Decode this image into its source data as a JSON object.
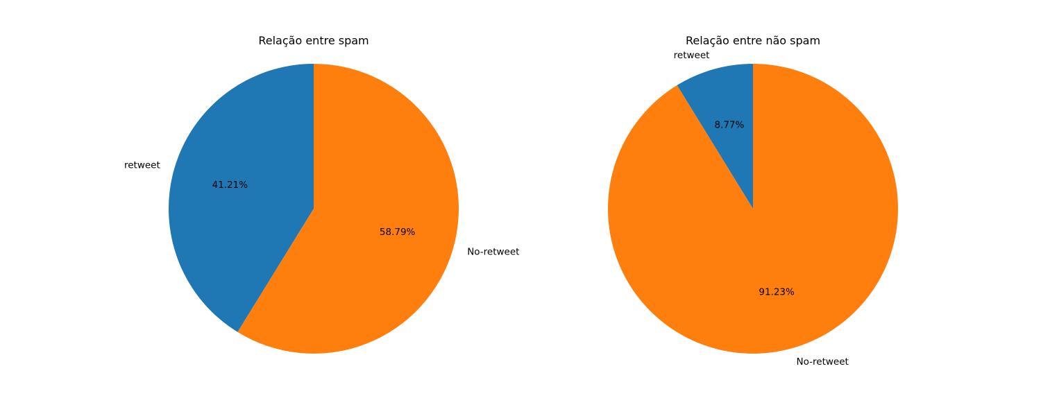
{
  "chart_data": [
    {
      "type": "pie",
      "title": "Relação entre spam",
      "categories": [
        "retweet",
        "No-retweet"
      ],
      "values": [
        41.21,
        58.79
      ],
      "value_labels": [
        "41.21%",
        "58.79%"
      ],
      "colors": [
        "#1f77b4",
        "#ff7f0e"
      ],
      "start_angle_deg": 90,
      "direction": "counterclockwise"
    },
    {
      "type": "pie",
      "title": "Relação entre não spam",
      "categories": [
        "retweet",
        "No-retweet"
      ],
      "values": [
        8.77,
        91.23
      ],
      "value_labels": [
        "8.77%",
        "91.23%"
      ],
      "colors": [
        "#1f77b4",
        "#ff7f0e"
      ],
      "start_angle_deg": 90,
      "direction": "counterclockwise"
    }
  ]
}
